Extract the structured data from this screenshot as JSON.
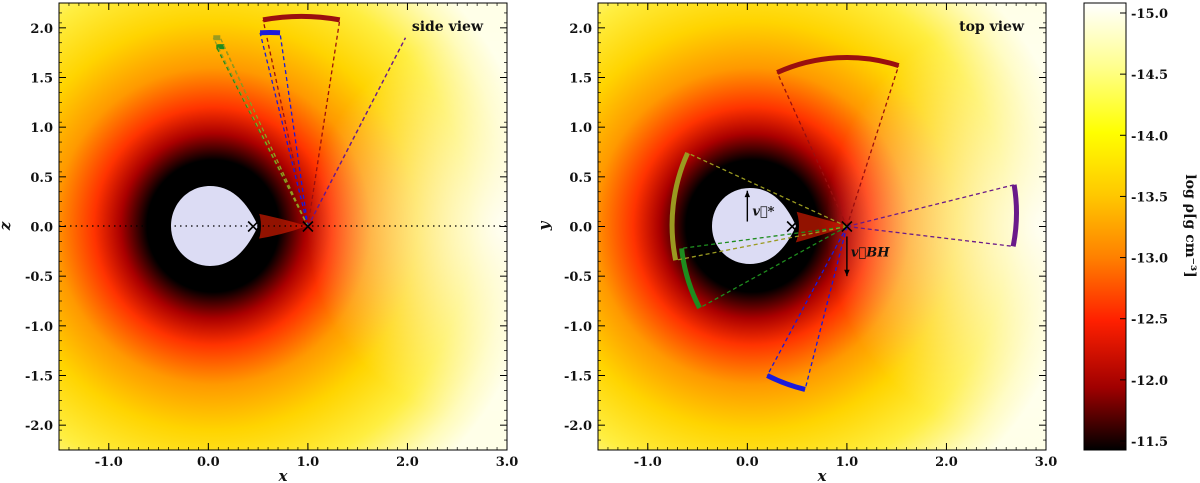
{
  "chart_data": [
    {
      "type": "heatmap",
      "title": "",
      "xlabel": "x",
      "ylabel": "z",
      "xlim": [
        -1.5,
        3.0
      ],
      "ylim": [
        -2.25,
        2.25
      ],
      "view_label": "side view",
      "x_ticks": [
        "-1.0",
        "0.0",
        "1.0",
        "2.0",
        "3.0"
      ],
      "y_ticks": [
        "-2.0",
        "-1.5",
        "-1.0",
        "-0.5",
        "0.0",
        "0.5",
        "1.0",
        "1.5",
        "2.0"
      ],
      "star_center": [
        0.0,
        0.0
      ],
      "cross_markers": [
        [
          0.45,
          0.0
        ],
        [
          1.0,
          0.0
        ]
      ],
      "black_hole": [
        1.0,
        0.0
      ],
      "cones": [
        {
          "color": "#9a0f0f",
          "arc_x": [
            0.55,
            1.32
          ],
          "arc_y": 2.08
        },
        {
          "color": "#1a1adb",
          "arc_x": [
            0.52,
            0.72
          ],
          "arc_y": 1.95
        },
        {
          "color": "#1e8c1e",
          "arc_x": [
            0.08,
            0.16
          ],
          "arc_y": 1.81
        },
        {
          "color": "#9a9a20",
          "arc_x": [
            0.05,
            0.12
          ],
          "arc_y": 1.9
        },
        {
          "color": "#6a1a8a",
          "arc_x": [
            1.98,
            1.98
          ],
          "arc_y": 1.9
        }
      ]
    },
    {
      "type": "heatmap",
      "title": "",
      "xlabel": "x",
      "ylabel": "y",
      "xlim": [
        -1.5,
        3.0
      ],
      "ylim": [
        -2.25,
        2.25
      ],
      "view_label": "top view",
      "x_ticks": [
        "-1.0",
        "0.0",
        "1.0",
        "2.0",
        "3.0"
      ],
      "y_ticks": [
        "-2.0",
        "-1.5",
        "-1.0",
        "-0.5",
        "0.0",
        "0.5",
        "1.0",
        "1.5",
        "2.0"
      ],
      "star_center": [
        0.0,
        0.0
      ],
      "cross_markers": [
        [
          0.45,
          0.0
        ],
        [
          1.0,
          0.0
        ]
      ],
      "black_hole": [
        1.0,
        0.0
      ],
      "vectors": [
        {
          "label": "v⃗*",
          "from": [
            0.0,
            0.05
          ],
          "to": [
            0.0,
            0.36
          ]
        },
        {
          "label": "v⃗BH",
          "from": [
            1.0,
            -0.1
          ],
          "to": [
            1.0,
            -0.5
          ]
        }
      ],
      "cones": [
        {
          "color": "#9a0f0f",
          "arc": [
            [
              0.3,
              1.55
            ],
            [
              1.52,
              1.62
            ]
          ]
        },
        {
          "color": "#6a1a8a",
          "arc": [
            [
              2.68,
              0.42
            ],
            [
              2.67,
              -0.2
            ]
          ]
        },
        {
          "color": "#1a1adb",
          "arc": [
            [
              0.2,
              -1.5
            ],
            [
              0.58,
              -1.64
            ]
          ]
        },
        {
          "color": "#1e8c1e",
          "arc": [
            [
              -0.66,
              -0.22
            ],
            [
              -0.48,
              -0.82
            ]
          ]
        },
        {
          "color": "#9a9a20",
          "arc": [
            [
              -0.6,
              0.74
            ],
            [
              -0.72,
              -0.34
            ]
          ]
        }
      ]
    }
  ],
  "colorbar": {
    "label": "log ρ[g cm⁻³]",
    "range": [
      -11.5,
      -15.0
    ],
    "ticks": [
      "-15.0",
      "-14.5",
      "-14.0",
      "-13.5",
      "-13.0",
      "-12.5",
      "-12.0",
      "-11.5"
    ],
    "colors": [
      "#ffffff",
      "#ffff80",
      "#ffff00",
      "#ffcc00",
      "#ff8800",
      "#ff2200",
      "#aa0000",
      "#000000"
    ]
  }
}
